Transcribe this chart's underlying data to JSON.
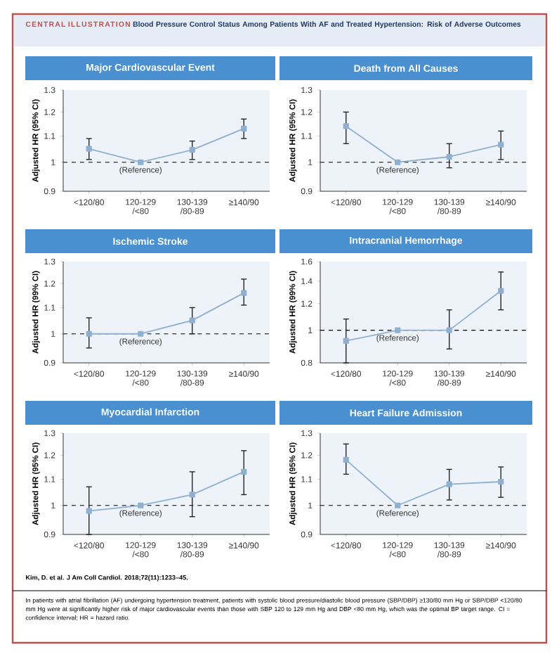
{
  "chart_data": [
    {
      "type": "other",
      "title": "CENTRAL ILLUSTRATION",
      "subtitle": "Blood Pressure Control Status Among Patients With AF and Treated Hypertension: Risk of Adverse Outcomes",
      "annotations": [
        "Kim, D. et al. J Am Coll Cardiol. 2018;72(11):1233–45.",
        "In patients with atrial fibrillation (AF) undergoing hypertension treatment, patients with systolic blood pressure/diastolic blood pressure (SBP/DBP) ≥130/80 mm Hg or SBP/DBP <120/80 mm Hg were at significantly higher risk of major cardiovascular events than those with SBP 120 to 129 mm Hg and DBP <80 mm Hg, which was the optimal BP target range. CI = confidence interval; HR = hazard ratio."
      ]
    },
    {
      "type": "line",
      "title": "Major Cardiovascular Event",
      "ylabel": "Adjusted HR (95% CI)",
      "categories": [
        "<120/80",
        "120-129 /<80",
        "130-139 /80-89",
        "≥140/90"
      ],
      "values": [
        1.05,
        1.0,
        1.046,
        1.13
      ],
      "errors": [
        [
          1.01,
          1.09
        ],
        null,
        [
          1.01,
          1.08
        ],
        [
          1.09,
          1.17
        ]
      ],
      "color": "#8fb0d0",
      "marker": "square",
      "log": true,
      "ylim": [
        0.9,
        1.3
      ],
      "yticks": [
        0.9,
        1,
        1.1,
        1.2,
        1.3
      ],
      "ref_lines": [
        {
          "axis": "y",
          "value": 1,
          "line_style": "dashed"
        }
      ],
      "annotations": [
        {
          "text": "(Reference)",
          "x": "120-129 /<80",
          "y": 1
        }
      ]
    },
    {
      "type": "line",
      "title": "Death from All Causes",
      "ylabel": "Adjusted HR (95% CI)",
      "categories": [
        "<120/80",
        "120-129 /<80",
        "130-139 /80-89",
        "≥140/90"
      ],
      "values": [
        1.14,
        1.0,
        1.02,
        1.066
      ],
      "errors": [
        [
          1.07,
          1.2
        ],
        null,
        [
          0.98,
          1.07
        ],
        [
          1.01,
          1.12
        ]
      ],
      "color": "#8fb0d0",
      "marker": "square",
      "log": true,
      "ylim": [
        0.9,
        1.3
      ],
      "yticks": [
        0.9,
        1,
        1.1,
        1.2,
        1.3
      ],
      "ref_lines": [
        {
          "axis": "y",
          "value": 1,
          "line_style": "dashed"
        }
      ],
      "annotations": [
        {
          "text": "(Reference)",
          "x": "120-129 /<80",
          "y": 1
        }
      ]
    },
    {
      "type": "line",
      "title": "Ischemic Stroke",
      "ylabel": "Adjusted HR (99% CI)",
      "categories": [
        "<120/80",
        "120-129 /<80",
        "130-139 /80-89",
        "≥140/90"
      ],
      "values": [
        1.0,
        1.0,
        1.05,
        1.16
      ],
      "errors": [
        [
          0.95,
          1.06
        ],
        null,
        [
          1.0,
          1.1
        ],
        [
          1.11,
          1.22
        ]
      ],
      "color": "#8fb0d0",
      "marker": "square",
      "log": true,
      "ylim": [
        0.9,
        1.3
      ],
      "yticks": [
        0.9,
        1,
        1.1,
        1.2,
        1.3
      ],
      "ref_lines": [
        {
          "axis": "y",
          "value": 1,
          "line_style": "dashed"
        }
      ],
      "annotations": [
        {
          "text": "(Reference)",
          "x": "120-129 /<80",
          "y": 1
        }
      ]
    },
    {
      "type": "line",
      "title": "Intracranial Hemorrhage",
      "ylabel": "Adjusted HR (99% CI)",
      "categories": [
        "<120/80",
        "120-129 /<80",
        "130-139 /80-89",
        "≥140/90"
      ],
      "values": [
        0.93,
        1.0,
        1.0,
        1.31
      ],
      "errors": [
        [
          0.8,
          1.08
        ],
        null,
        [
          0.88,
          1.15
        ],
        [
          1.15,
          1.49
        ]
      ],
      "color": "#8fb0d0",
      "marker": "square",
      "log": true,
      "ylim": [
        0.8,
        1.6
      ],
      "yticks": [
        0.8,
        1,
        1.2,
        1.4,
        1.6
      ],
      "ref_lines": [
        {
          "axis": "y",
          "value": 1,
          "line_style": "dashed"
        }
      ],
      "annotations": [
        {
          "text": "(Reference)",
          "x": "120-129 /<80",
          "y": 1
        }
      ]
    },
    {
      "type": "line",
      "title": "Myocardial Infarction",
      "ylabel": "Adjusted HR (95% CI)",
      "categories": [
        "<120/80",
        "120-129 /<80",
        "130-139 /80-89",
        "≥140/90"
      ],
      "values": [
        0.98,
        1.0,
        1.04,
        1.13
      ],
      "errors": [
        [
          0.9,
          1.07
        ],
        null,
        [
          0.96,
          1.13
        ],
        [
          1.04,
          1.22
        ]
      ],
      "color": "#8fb0d0",
      "marker": "square",
      "log": true,
      "ylim": [
        0.9,
        1.3
      ],
      "yticks": [
        0.9,
        1,
        1.1,
        1.2,
        1.3
      ],
      "ref_lines": [
        {
          "axis": "y",
          "value": 1,
          "line_style": "dashed"
        }
      ],
      "annotations": [
        {
          "text": "(Reference)",
          "x": "120-129 /<80",
          "y": 1
        }
      ]
    },
    {
      "type": "line",
      "title": "Heart Failure Admission",
      "ylabel": "Adjusted HR (95% CI)",
      "categories": [
        "<120/80",
        "120-129 /<80",
        "130-139 /80-89",
        "≥140/90"
      ],
      "values": [
        1.18,
        1.0,
        1.08,
        1.09
      ],
      "errors": [
        [
          1.12,
          1.25
        ],
        null,
        [
          1.02,
          1.14
        ],
        [
          1.03,
          1.15
        ]
      ],
      "color": "#8fb0d0",
      "marker": "square",
      "log": true,
      "ylim": [
        0.9,
        1.3
      ],
      "yticks": [
        0.9,
        1,
        1.1,
        1.2,
        1.3
      ],
      "ref_lines": [
        {
          "axis": "y",
          "value": 1,
          "line_style": "dashed"
        }
      ],
      "annotations": [
        {
          "text": "(Reference)",
          "x": "120-129 /<80",
          "y": 1
        }
      ]
    }
  ]
}
